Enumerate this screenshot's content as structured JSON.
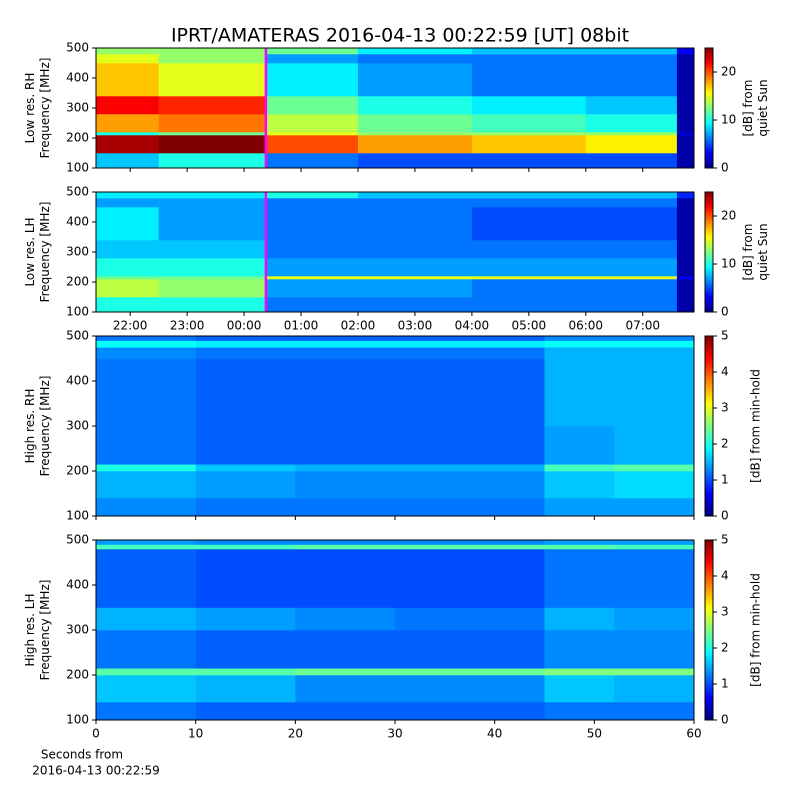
{
  "chart_data": [
    {
      "type": "heatmap",
      "title": "IPRT/AMATERAS 2016-04-13 00:22:59 [UT]   08bit",
      "ylabel": [
        "Low res. RH",
        "Frequency [MHz]"
      ],
      "colorbar_label": [
        "[dB] from",
        "quiet Sun"
      ],
      "colormap": "jet",
      "xlim": [
        21.4,
        31.9
      ],
      "xticks": [
        22,
        23,
        24,
        25,
        26,
        27,
        28,
        29,
        30,
        31
      ],
      "show_xtick_labels": false,
      "ylim": [
        100,
        500
      ],
      "yticks": [
        100,
        200,
        300,
        400,
        500
      ],
      "zlim": [
        0,
        25
      ],
      "zticks": [
        0,
        10,
        20
      ],
      "vline": {
        "x": 24.383,
        "color": "#ff00ff"
      },
      "x_edges": [
        21.4,
        22.5,
        24.383,
        26,
        28,
        30,
        31.6,
        31.9
      ],
      "y_edges": [
        100,
        150,
        210,
        220,
        280,
        340,
        450,
        480,
        500
      ],
      "z": [
        [
          8,
          10,
          6,
          5,
          5,
          5,
          1
        ],
        [
          24,
          25,
          20,
          18,
          17,
          16,
          1
        ],
        [
          10,
          12,
          15,
          13,
          13,
          13,
          2
        ],
        [
          18,
          19,
          14,
          12,
          11,
          10,
          1
        ],
        [
          22,
          21,
          12,
          10,
          9,
          8,
          1
        ],
        [
          17,
          15,
          9,
          7,
          6,
          6,
          1
        ],
        [
          15,
          13,
          7,
          6,
          6,
          6,
          1
        ],
        [
          13,
          13,
          12,
          9,
          8,
          8,
          3
        ]
      ]
    },
    {
      "type": "heatmap",
      "ylabel": [
        "Low res. LH",
        "Frequency [MHz]"
      ],
      "colorbar_label": [
        "[dB] from",
        "quiet Sun"
      ],
      "colormap": "jet",
      "xlim": [
        21.4,
        31.9
      ],
      "xticks": [
        {
          "value": 22,
          "label": "22:00"
        },
        {
          "value": 23,
          "label": "23:00"
        },
        {
          "value": 24,
          "label": "00:00"
        },
        {
          "value": 25,
          "label": "01:00"
        },
        {
          "value": 26,
          "label": "02:00"
        },
        {
          "value": 27,
          "label": "03:00"
        },
        {
          "value": 28,
          "label": "04:00"
        },
        {
          "value": 29,
          "label": "05:00"
        },
        {
          "value": 30,
          "label": "06:00"
        },
        {
          "value": 31,
          "label": "07:00"
        }
      ],
      "show_xtick_labels": true,
      "ylim": [
        100,
        500
      ],
      "yticks": [
        100,
        200,
        300,
        400,
        500
      ],
      "zlim": [
        0,
        25
      ],
      "zticks": [
        0,
        10,
        20
      ],
      "vline": {
        "x": 24.383,
        "color": "#ff00ff"
      },
      "x_edges": [
        21.4,
        22.5,
        24.383,
        26,
        28,
        30,
        31.6,
        31.9
      ],
      "y_edges": [
        100,
        150,
        210,
        220,
        280,
        340,
        450,
        480,
        500
      ],
      "z": [
        [
          10,
          10,
          6,
          6,
          6,
          6,
          1
        ],
        [
          14,
          13,
          7,
          7,
          6,
          6,
          1
        ],
        [
          12,
          12,
          15,
          15,
          15,
          15,
          3
        ],
        [
          10,
          10,
          7,
          7,
          7,
          7,
          1
        ],
        [
          8,
          8,
          6,
          6,
          6,
          6,
          1
        ],
        [
          9,
          7,
          6,
          6,
          5,
          5,
          1
        ],
        [
          7,
          7,
          6,
          6,
          6,
          6,
          1
        ],
        [
          9,
          9,
          10,
          8,
          8,
          8,
          4
        ]
      ]
    },
    {
      "type": "heatmap",
      "ylabel": [
        "High res. RH",
        "Frequency [MHz]"
      ],
      "colorbar_label": [
        "[dB] from min-hold"
      ],
      "colormap": "jet",
      "xlim": [
        0,
        60
      ],
      "xticks": [
        0,
        10,
        20,
        30,
        40,
        50,
        60
      ],
      "show_xtick_labels": false,
      "ylim": [
        100,
        500
      ],
      "yticks": [
        100,
        200,
        300,
        400,
        500
      ],
      "zlim": [
        0,
        5
      ],
      "zticks": [
        0,
        1,
        2,
        3,
        4,
        5
      ],
      "x_edges": [
        0,
        10,
        20,
        30,
        45,
        52,
        60
      ],
      "y_edges": [
        100,
        140,
        200,
        215,
        300,
        450,
        475,
        490,
        500
      ],
      "z": [
        [
          1.3,
          1.2,
          1.2,
          1.2,
          1.4,
          1.4
        ],
        [
          1.5,
          1.4,
          1.3,
          1.3,
          1.6,
          1.7
        ],
        [
          2.0,
          1.6,
          1.5,
          1.5,
          2.2,
          2.3
        ],
        [
          1.2,
          1.1,
          1.1,
          1.1,
          1.4,
          1.5
        ],
        [
          1.2,
          1.1,
          1.1,
          1.1,
          1.5,
          1.5
        ],
        [
          1.3,
          1.2,
          1.2,
          1.2,
          1.5,
          1.5
        ],
        [
          1.9,
          1.8,
          1.8,
          1.8,
          1.9,
          1.9
        ],
        [
          1.2,
          1.1,
          1.1,
          1.1,
          1.3,
          1.3
        ]
      ]
    },
    {
      "type": "heatmap",
      "ylabel": [
        "High res. LH",
        "Frequency [MHz]"
      ],
      "colorbar_label": [
        "[dB] from min-hold"
      ],
      "colormap": "jet",
      "xlabel": [
        "Seconds from",
        "2016-04-13 00:22:59"
      ],
      "xlim": [
        0,
        60
      ],
      "xticks": [
        0,
        10,
        20,
        30,
        40,
        50,
        60
      ],
      "show_xtick_labels": true,
      "ylim": [
        100,
        500
      ],
      "yticks": [
        100,
        200,
        300,
        400,
        500
      ],
      "zlim": [
        0,
        5
      ],
      "zticks": [
        0,
        1,
        2,
        3,
        4,
        5
      ],
      "x_edges": [
        0,
        10,
        20,
        30,
        45,
        52,
        60
      ],
      "y_edges": [
        100,
        140,
        200,
        215,
        300,
        350,
        480,
        490,
        500
      ],
      "z": [
        [
          1.2,
          1.1,
          1.1,
          1.1,
          1.2,
          1.2
        ],
        [
          1.6,
          1.5,
          1.3,
          1.3,
          1.6,
          1.5
        ],
        [
          2.3,
          2.3,
          2.4,
          2.4,
          2.5,
          2.5
        ],
        [
          1.2,
          1.1,
          1.1,
          1.1,
          1.3,
          1.3
        ],
        [
          1.5,
          1.4,
          1.3,
          1.2,
          1.5,
          1.4
        ],
        [
          1.1,
          1.0,
          1.0,
          1.0,
          1.2,
          1.2
        ],
        [
          2.2,
          2.2,
          2.3,
          2.3,
          2.3,
          2.2
        ],
        [
          1.4,
          1.3,
          1.3,
          1.3,
          1.4,
          1.4
        ]
      ]
    }
  ]
}
